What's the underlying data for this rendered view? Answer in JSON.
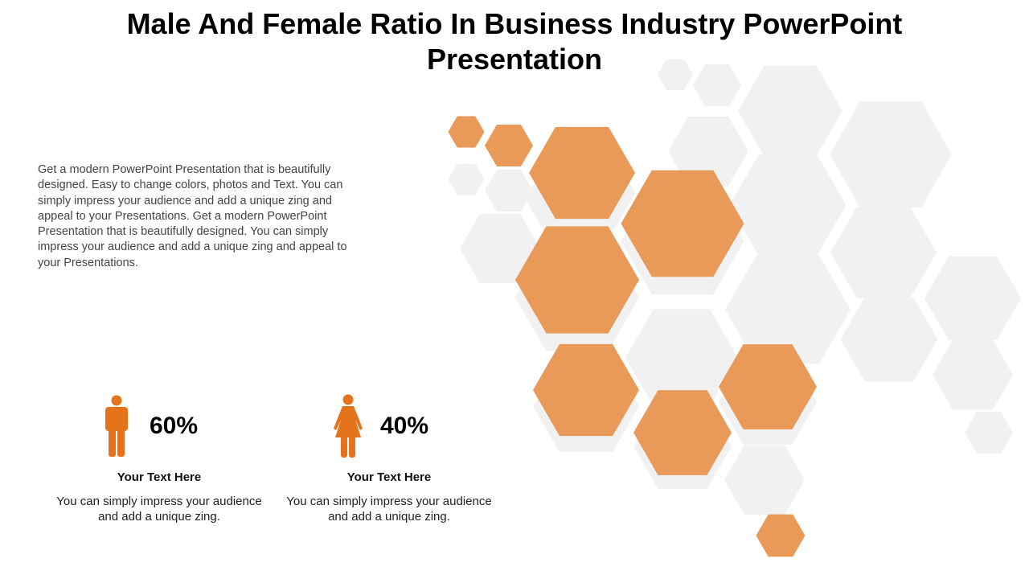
{
  "title": "Male And Female Ratio In Business Industry PowerPoint Presentation",
  "description": "Get a modern PowerPoint  Presentation that is beautifully designed.  Easy to change colors, photos and Text. You can simply impress your audience and add a unique zing and appeal to your Presentations. Get a modern PowerPoint  Presentation that is beautifully designed. You can simply impress your audience and add a unique zing and appeal to your Presentations.",
  "stats": [
    {
      "icon": "male-icon",
      "percent": "60%",
      "value": 60,
      "heading": "Your Text Here",
      "text": "You can simply impress your audience and add a unique zing."
    },
    {
      "icon": "female-icon",
      "percent": "40%",
      "value": 40,
      "heading": "Your Text Here",
      "text": "You can simply impress your audience and add a unique zing."
    }
  ],
  "colors": {
    "accent": "#E8954F",
    "icon": "#E5731B",
    "hex_gray": "#F1F1F1"
  }
}
